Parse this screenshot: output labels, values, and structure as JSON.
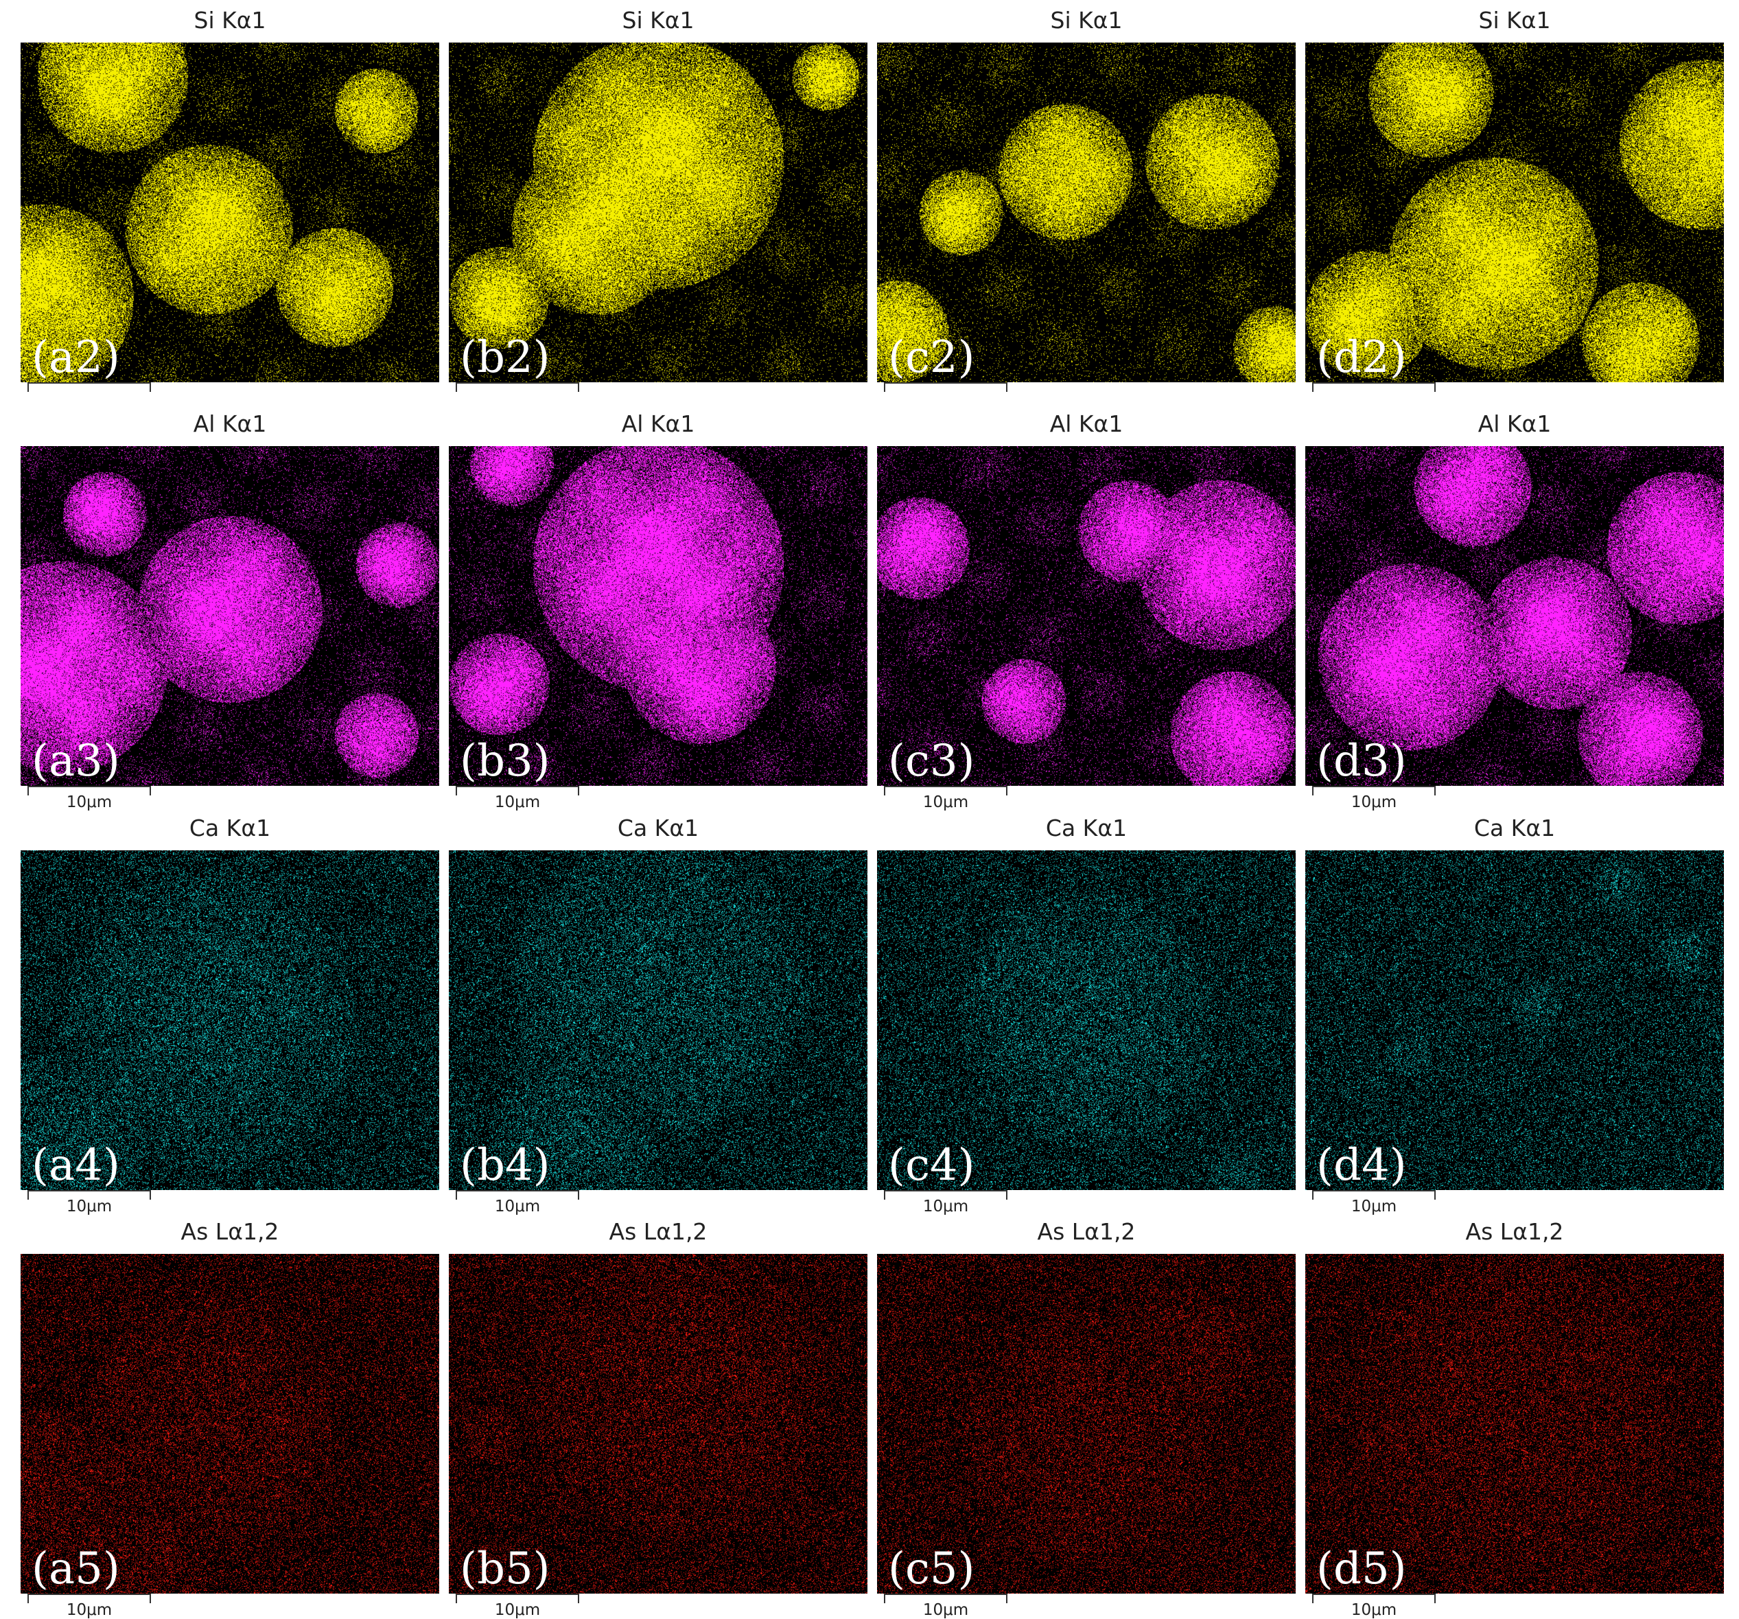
{
  "figure": {
    "rows": [
      {
        "element": "Si Kα1",
        "color": "#f5ef00",
        "panels": [
          {
            "title": "Si Kα1",
            "label": "(a2)",
            "scale": ""
          },
          {
            "title": "Si Kα1",
            "label": "(b2)",
            "scale": ""
          },
          {
            "title": "Si Kα1",
            "label": "(c2)",
            "scale": ""
          },
          {
            "title": "Si Kα1",
            "label": "(d2)",
            "scale": ""
          }
        ]
      },
      {
        "element": "Al Kα1",
        "color": "#ff22ff",
        "panels": [
          {
            "title": "Al Kα1",
            "label": "(a3)",
            "scale": "10μm"
          },
          {
            "title": "Al Kα1",
            "label": "(b3)",
            "scale": "10μm"
          },
          {
            "title": "Al Kα1",
            "label": "(c3)",
            "scale": "10μm"
          },
          {
            "title": "Al Kα1",
            "label": "(d3)",
            "scale": "10μm"
          }
        ]
      },
      {
        "element": "Ca Kα1",
        "color": "#19e6e6",
        "panels": [
          {
            "title": "Ca Kα1",
            "label": "(a4)",
            "scale": "10μm"
          },
          {
            "title": "Ca Kα1",
            "label": "(b4)",
            "scale": "10μm"
          },
          {
            "title": "Ca Kα1",
            "label": "(c4)",
            "scale": "10μm"
          },
          {
            "title": "Ca Kα1",
            "label": "(d4)",
            "scale": "10μm"
          }
        ]
      },
      {
        "element": "As Lα1,2",
        "color": "#ff1a10",
        "panels": [
          {
            "title": "As Lα1,2",
            "label": "(a5)",
            "scale": "10μm"
          },
          {
            "title": "As Lα1,2",
            "label": "(b5)",
            "scale": "10μm"
          },
          {
            "title": "As Lα1,2",
            "label": "(c5)",
            "scale": "10μm"
          },
          {
            "title": "As Lα1,2",
            "label": "(d5)",
            "scale": "10μm"
          }
        ]
      }
    ]
  }
}
